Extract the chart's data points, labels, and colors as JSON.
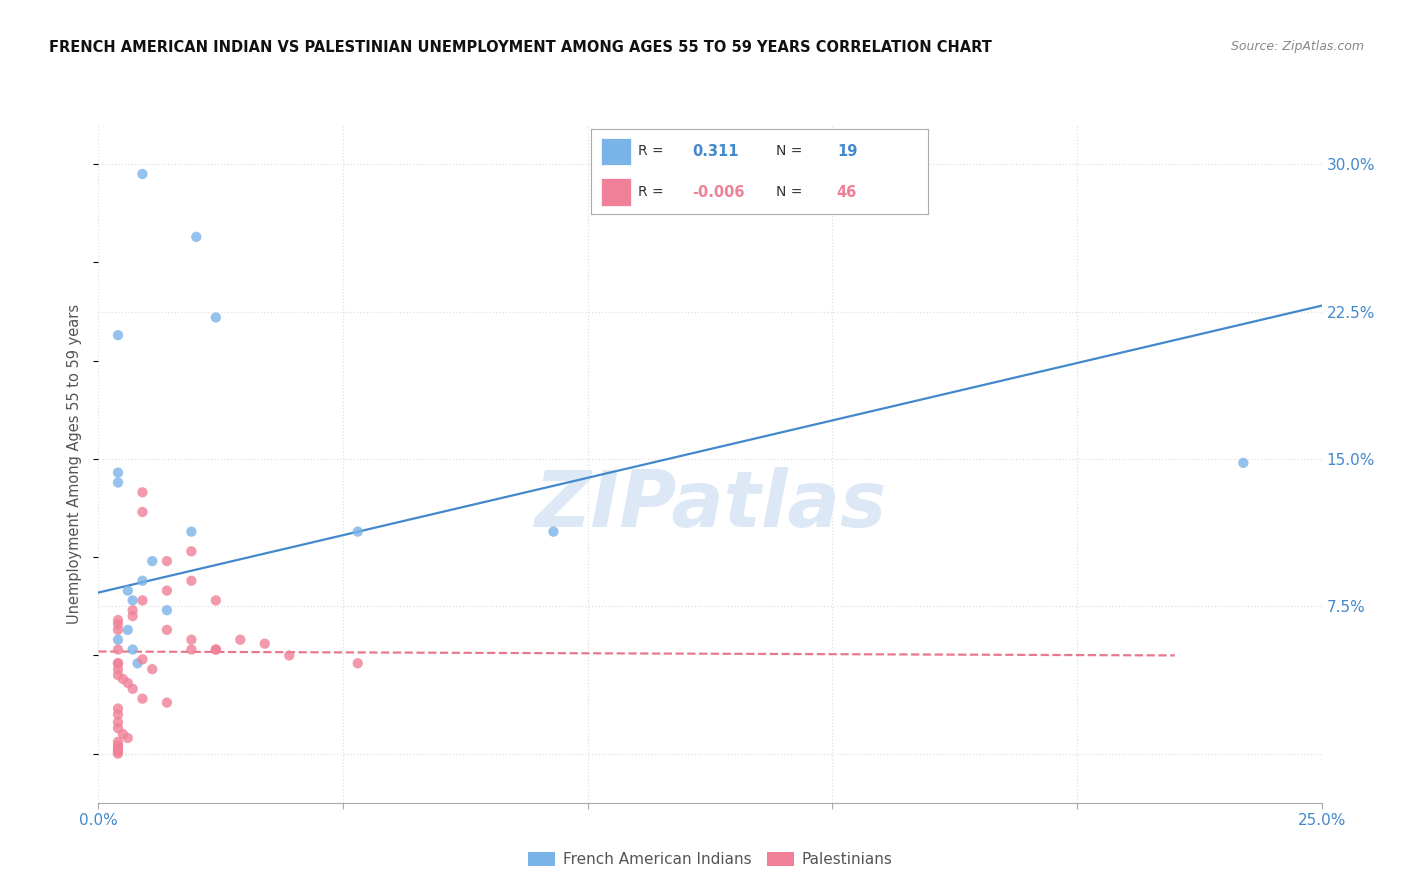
{
  "title": "FRENCH AMERICAN INDIAN VS PALESTINIAN UNEMPLOYMENT AMONG AGES 55 TO 59 YEARS CORRELATION CHART",
  "source": "Source: ZipAtlas.com",
  "ylabel": "Unemployment Among Ages 55 to 59 years",
  "xlim": [
    0.0,
    0.25
  ],
  "ylim": [
    -0.025,
    0.32
  ],
  "xticks": [
    0.0,
    0.05,
    0.1,
    0.15,
    0.2,
    0.25
  ],
  "xticklabels": [
    "0.0%",
    "",
    "",
    "",
    "",
    "25.0%"
  ],
  "yticks": [
    0.0,
    0.075,
    0.15,
    0.225,
    0.3
  ],
  "yticklabels_right": [
    "",
    "7.5%",
    "15.0%",
    "22.5%",
    "30.0%"
  ],
  "watermark": "ZIPatlas",
  "fai_scatter_x": [
    0.004,
    0.009,
    0.02,
    0.024,
    0.004,
    0.004,
    0.006,
    0.007,
    0.009,
    0.011,
    0.014,
    0.019,
    0.053,
    0.006,
    0.007,
    0.008,
    0.234,
    0.093,
    0.004
  ],
  "fai_scatter_y": [
    0.213,
    0.295,
    0.263,
    0.222,
    0.143,
    0.138,
    0.083,
    0.078,
    0.088,
    0.098,
    0.073,
    0.113,
    0.113,
    0.063,
    0.053,
    0.046,
    0.148,
    0.113,
    0.058
  ],
  "pal_scatter_x": [
    0.004,
    0.004,
    0.009,
    0.009,
    0.014,
    0.019,
    0.004,
    0.004,
    0.004,
    0.007,
    0.007,
    0.009,
    0.014,
    0.019,
    0.024,
    0.004,
    0.004,
    0.004,
    0.005,
    0.006,
    0.007,
    0.009,
    0.011,
    0.014,
    0.019,
    0.024,
    0.029,
    0.034,
    0.039,
    0.053,
    0.004,
    0.004,
    0.004,
    0.004,
    0.005,
    0.006,
    0.009,
    0.014,
    0.019,
    0.024,
    0.004,
    0.004,
    0.004,
    0.004,
    0.004,
    0.004
  ],
  "pal_scatter_y": [
    0.053,
    0.046,
    0.133,
    0.123,
    0.098,
    0.103,
    0.063,
    0.068,
    0.066,
    0.073,
    0.07,
    0.078,
    0.083,
    0.088,
    0.078,
    0.046,
    0.043,
    0.04,
    0.038,
    0.036,
    0.033,
    0.048,
    0.043,
    0.063,
    0.058,
    0.053,
    0.058,
    0.056,
    0.05,
    0.046,
    0.023,
    0.02,
    0.016,
    0.013,
    0.01,
    0.008,
    0.028,
    0.026,
    0.053,
    0.053,
    0.006,
    0.004,
    0.002,
    0.0,
    0.001,
    0.003
  ],
  "fai_line_x": [
    0.0,
    0.25
  ],
  "fai_line_y": [
    0.082,
    0.228
  ],
  "pal_line_x": [
    0.0,
    0.22
  ],
  "pal_line_y": [
    0.052,
    0.05
  ],
  "background_color": "#ffffff",
  "scatter_size": 55,
  "fai_color": "#7ab3e8",
  "pal_color": "#f08098",
  "fai_line_color": "#4488cc",
  "pal_line_color": "#e87890",
  "grid_color": "#e0e0e0",
  "legend_r1": "0.311",
  "legend_n1": "19",
  "legend_r2": "-0.006",
  "legend_n2": "46"
}
